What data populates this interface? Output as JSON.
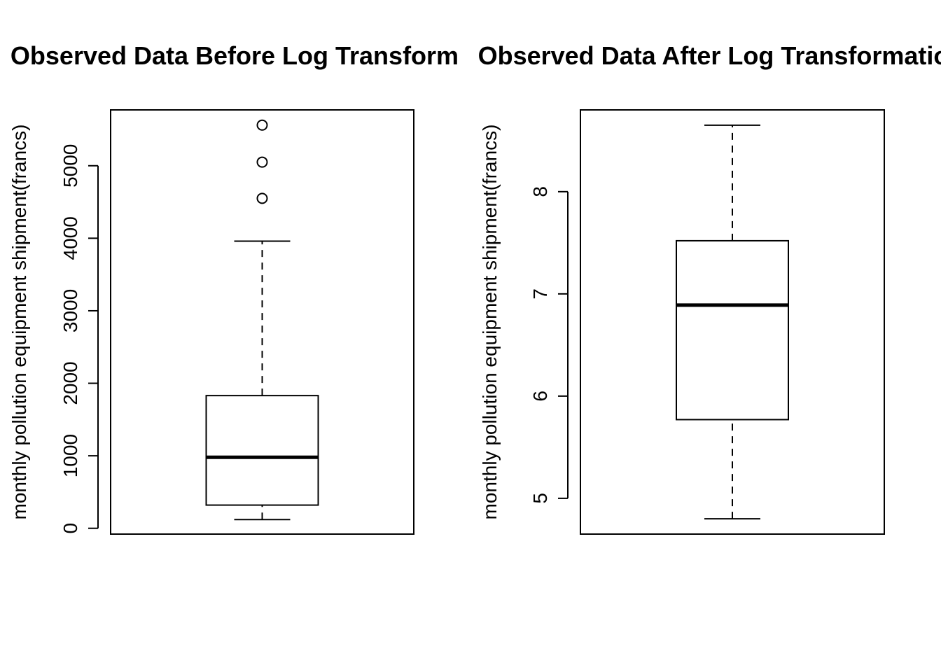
{
  "chart_data": [
    {
      "type": "boxplot",
      "title": "Observed Data Before Log Transform",
      "ylabel": "monthly pollution equipment shipment(francs)",
      "xlabel": "",
      "ylim": [
        -80,
        5770
      ],
      "yticks": [
        0,
        1000,
        2000,
        3000,
        4000,
        5000
      ],
      "ytick_labels": [
        "0",
        "1000",
        "2000",
        "3000",
        "4000",
        "5000"
      ],
      "box": {
        "whisker_low": 120,
        "q1": 320,
        "median": 980,
        "q3": 1830,
        "whisker_high": 3960
      },
      "outliers": [
        4550,
        5050,
        5560
      ]
    },
    {
      "type": "boxplot",
      "title": "Observed Data After Log Transformation",
      "ylabel": "monthly pollution equipment shipment(francs)",
      "xlabel": "",
      "ylim": [
        4.65,
        8.8
      ],
      "yticks": [
        5,
        6,
        7,
        8
      ],
      "ytick_labels": [
        "5",
        "6",
        "7",
        "8"
      ],
      "box": {
        "whisker_low": 4.8,
        "q1": 5.77,
        "median": 6.89,
        "q3": 7.52,
        "whisker_high": 8.65
      },
      "outliers": []
    }
  ]
}
